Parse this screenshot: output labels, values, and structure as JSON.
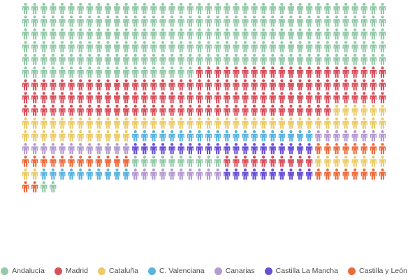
{
  "chart_data": {
    "type": "pictogram",
    "icon": "person-icon",
    "columns": 40,
    "rows": 20,
    "order": "row-major",
    "series": [
      {
        "name": "Andalucía",
        "color": "#93c9a8",
        "count": 219
      },
      {
        "name": "Madrid",
        "color": "#d8505c",
        "count": 135
      },
      {
        "name": "Cataluña",
        "color": "#ebcb6a",
        "count": 58
      },
      {
        "name": "C. Valenciana",
        "color": "#5ab3e0",
        "count": 20
      },
      {
        "name": "Canarias",
        "color": "#b49bd0",
        "count": 20
      },
      {
        "name": "Castilla La Mancha",
        "color": "#6a4fd6",
        "count": 20
      },
      {
        "name": "Castilla y León",
        "color": "#ee6a3c",
        "count": 20
      },
      {
        "name": "Andalucía",
        "color": "#93c9a8",
        "count": 10
      },
      {
        "name": "Madrid",
        "color": "#d8505c",
        "count": 10
      },
      {
        "name": "Cataluña",
        "color": "#ebcb6a",
        "count": 10
      },
      {
        "name": "C. Valenciana",
        "color": "#5ab3e0",
        "count": 10
      },
      {
        "name": "Canarias",
        "color": "#b49bd0",
        "count": 10
      },
      {
        "name": "Castilla La Mancha",
        "color": "#6a4fd6",
        "count": 10
      },
      {
        "name": "Castilla y León",
        "color": "#ee6a3c",
        "count": 10
      },
      {
        "name": "Andalucía",
        "color": "#93c9a8",
        "count": 2
      }
    ],
    "legend": {
      "position": "bottom",
      "entries": [
        {
          "label": "Andalucía",
          "color": "#93c9a8"
        },
        {
          "label": "Madrid",
          "color": "#d8505c"
        },
        {
          "label": "Cataluña",
          "color": "#ebcb6a"
        },
        {
          "label": "C. Valenciana",
          "color": "#5ab3e0"
        },
        {
          "label": "Canarias",
          "color": "#b49bd0"
        },
        {
          "label": "Castilla La Mancha",
          "color": "#6a4fd6"
        },
        {
          "label": "Castilla y León",
          "color": "#ee6a3c"
        }
      ]
    }
  }
}
